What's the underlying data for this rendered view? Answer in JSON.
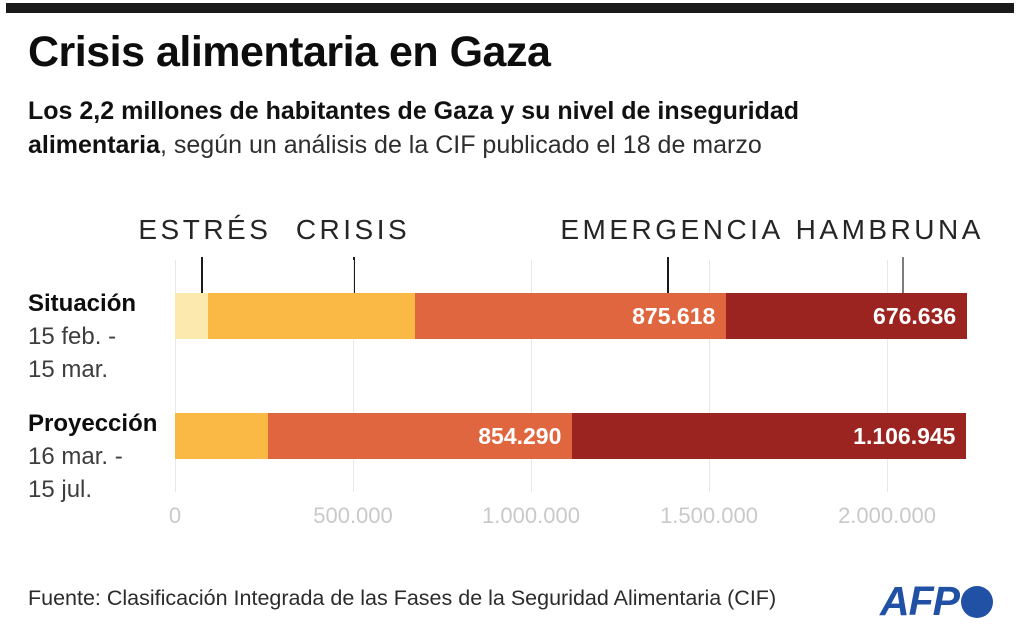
{
  "header": {
    "title": "Crisis alimentaria en Gaza",
    "subtitle_bold_line1": "Los 2,2 millones de habitantes de Gaza y su nivel de inseguridad",
    "subtitle_bold_line2": "alimentaria",
    "subtitle_regular": ", según un análisis de la CIF publicado el 18 de marzo"
  },
  "chart_data": {
    "type": "bar",
    "orientation": "horizontal",
    "stacked": true,
    "title": "Nivel de inseguridad alimentaria en Gaza (personas)",
    "categories": [
      {
        "id": "estres",
        "label": "ESTRÉS",
        "color": "#fce9ad"
      },
      {
        "id": "crisis",
        "label": "CRISIS",
        "color": "#f9b944"
      },
      {
        "id": "emergencia",
        "label": "EMERGENCIA",
        "color": "#e0663f"
      },
      {
        "id": "hambruna",
        "label": "HAMBRUNA",
        "color": "#9c2420"
      }
    ],
    "rows": [
      {
        "name": "Situación",
        "period": [
          "15 feb. -",
          "15 mar."
        ],
        "segments": [
          {
            "category": "estres",
            "value": 93000,
            "label": ""
          },
          {
            "category": "crisis",
            "value": 580000,
            "label": ""
          },
          {
            "category": "emergencia",
            "value": 875618,
            "label": "875.618"
          },
          {
            "category": "hambruna",
            "value": 676636,
            "label": "676.636"
          }
        ]
      },
      {
        "name": "Proyección",
        "period": [
          "16 mar. -",
          "15 jul."
        ],
        "segments": [
          {
            "category": "crisis",
            "value": 262000,
            "label": ""
          },
          {
            "category": "emergencia",
            "value": 854290,
            "label": "854.290"
          },
          {
            "category": "hambruna",
            "value": 1106945,
            "label": "1.106.945"
          }
        ]
      }
    ],
    "annotations": [
      {
        "id": "estres",
        "label": "ESTRÉS",
        "label_x": 84000,
        "tick_x": 76000,
        "tick_color": "#1a1a1a"
      },
      {
        "id": "crisis",
        "label": "CRISIS",
        "label_x": 500000,
        "tick_x": 503000,
        "tick_color": "#1a1a1a"
      },
      {
        "id": "emergencia",
        "label": "EMERGENCIA",
        "label_x": 1396000,
        "tick_x": 1385000,
        "tick_color": "#1a1a1a"
      },
      {
        "id": "hambruna",
        "label": "HAMBRUNA",
        "label_x": 2008000,
        "tick_x": 2045000,
        "tick_color": "#7d7d7d"
      }
    ],
    "x_axis": {
      "ticks": [
        {
          "value": 0,
          "label": "0"
        },
        {
          "value": 500000,
          "label": "500.000"
        },
        {
          "value": 1000000,
          "label": "1.000.000"
        },
        {
          "value": 1500000,
          "label": "1.500.000"
        },
        {
          "value": 2000000,
          "label": "2.000.000"
        }
      ],
      "max": 2240000,
      "grid": true
    },
    "value_label_color": "#ffffff"
  },
  "footer": {
    "source": "Fuente: Clasificación Integrada de las Fases de la Seguridad Alimentaria (CIF)",
    "logo_text": "AFP",
    "logo_color": "#2051a4"
  }
}
